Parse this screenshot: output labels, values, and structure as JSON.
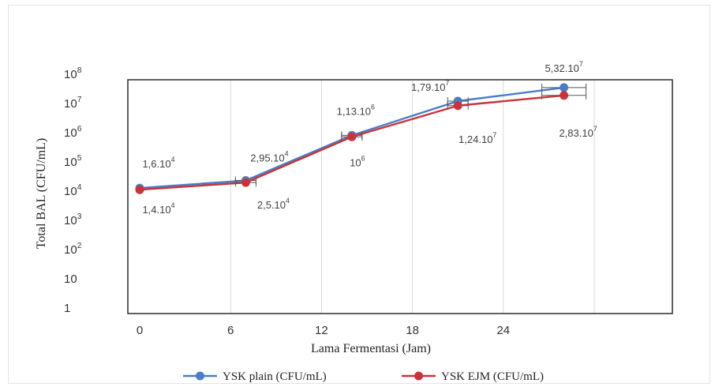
{
  "chart_data": {
    "type": "line",
    "xlabel": "Lama Fermentasi (Jam)",
    "ylabel": "Total BAL (CFU/mL)",
    "x_ticks": [
      "0",
      "6",
      "12",
      "18",
      "24"
    ],
    "y_ticks": [
      {
        "base": "10",
        "exp": "8"
      },
      {
        "base": "10",
        "exp": "7"
      },
      {
        "base": "10",
        "exp": "6"
      },
      {
        "base": "10",
        "exp": "5"
      },
      {
        "base": "10",
        "exp": "4"
      },
      {
        "base": "10",
        "exp": "3"
      },
      {
        "base": "10",
        "exp": "2"
      },
      {
        "base": "10",
        "exp": ""
      },
      {
        "base": "1",
        "exp": ""
      }
    ],
    "y_scale": "log",
    "ylim": [
      1,
      100000000
    ],
    "grid": "vertical",
    "legend_position": "bottom",
    "series": [
      {
        "name": "YSK plain (CFU/mL)",
        "color": "#4a7ec4",
        "x": [
          0,
          7,
          14,
          21,
          28
        ],
        "values": [
          16000,
          29500,
          1130000,
          17900000,
          53200000
        ],
        "labels": [
          {
            "base": "1,6.10",
            "exp": "4"
          },
          {
            "base": "2,95.10",
            "exp": "4"
          },
          {
            "base": "1,13.10",
            "exp": "6"
          },
          {
            "base": "1,79.10",
            "exp": "7"
          },
          {
            "base": "5,32.10",
            "exp": "7"
          }
        ]
      },
      {
        "name": "YSK EJM (CFU/mL)",
        "color": "#c9343a",
        "x": [
          0,
          7,
          14,
          21,
          28
        ],
        "values": [
          14000,
          25000,
          1000000,
          12400000,
          28300000
        ],
        "labels": [
          {
            "base": "1,4.10",
            "exp": "4"
          },
          {
            "base": "2,5.10",
            "exp": "4"
          },
          {
            "base": "10",
            "exp": "6"
          },
          {
            "base": "1,24.10",
            "exp": "7"
          },
          {
            "base": "2,83.10",
            "exp": "7"
          }
        ]
      }
    ]
  }
}
